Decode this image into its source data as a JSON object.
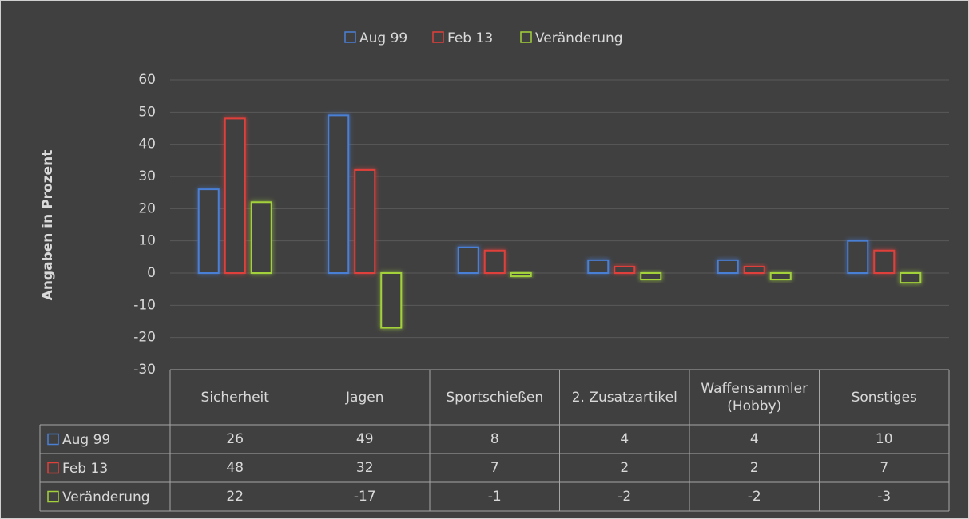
{
  "chart_data": {
    "type": "bar",
    "y_label": "Angaben in Prozent",
    "categories": [
      "Sicherheit",
      "Jagen",
      "Sportschießen",
      "2. Zusatzartikel",
      "Waffensammler (Hobby)",
      "Sonstiges"
    ],
    "series": [
      {
        "name": "Aug 99",
        "color": "#4a7fd4",
        "values": [
          26,
          49,
          8,
          4,
          4,
          10
        ]
      },
      {
        "name": "Feb 13",
        "color": "#e0403a",
        "values": [
          48,
          32,
          7,
          2,
          2,
          7
        ]
      },
      {
        "name": "Veränderung",
        "color": "#a3d13a",
        "values": [
          22,
          -17,
          -1,
          -2,
          -2,
          -3
        ]
      }
    ],
    "ylim": [
      -30,
      60
    ],
    "yticks": [
      -30,
      -20,
      -10,
      0,
      10,
      20,
      30,
      40,
      50,
      60
    ],
    "grid": true,
    "legend": "top"
  }
}
